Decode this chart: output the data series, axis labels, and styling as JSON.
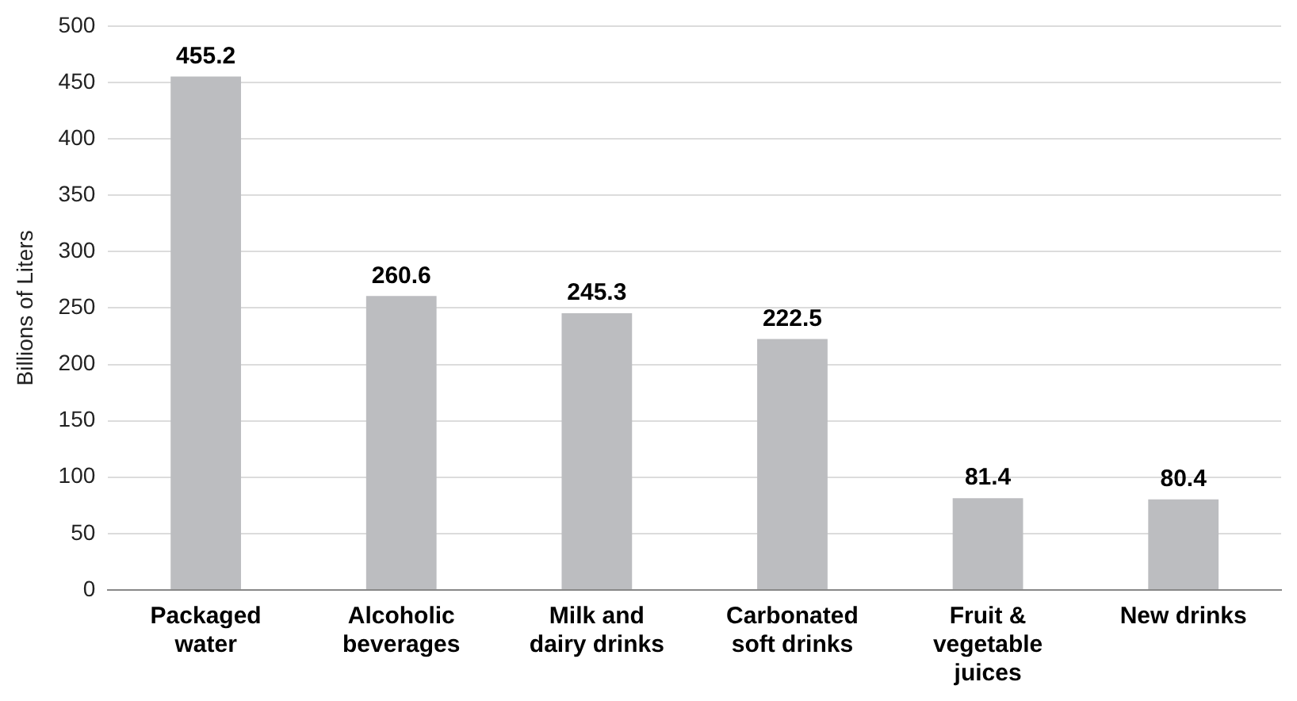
{
  "chart_data": {
    "type": "bar",
    "ylabel": "Billions of Liters",
    "categories": [
      "Packaged water",
      "Alcoholic beverages",
      "Milk and dairy drinks",
      "Carbonated soft drinks",
      "Fruit & vegetable juices",
      "New drinks"
    ],
    "values": [
      455.2,
      260.6,
      245.3,
      222.5,
      81.4,
      80.4
    ],
    "color": "#bcbdc0",
    "ylim": [
      0,
      500
    ],
    "yticks": [
      0,
      50,
      100,
      150,
      200,
      250,
      300,
      350,
      400,
      450,
      500
    ],
    "grid": "y",
    "legend": false,
    "data_labels": true
  }
}
